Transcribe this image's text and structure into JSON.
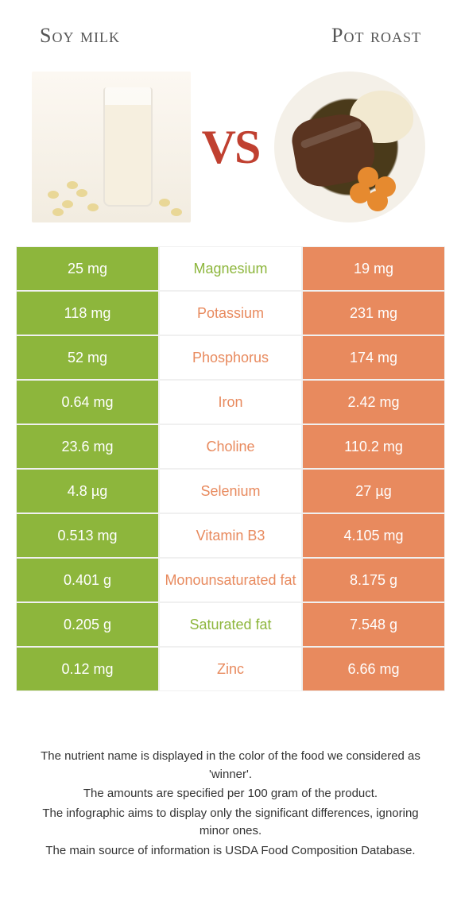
{
  "colors": {
    "green": "#8db63c",
    "orange": "#e88a5e",
    "row_border": "#f0f0f0",
    "title_text": "#555555",
    "vs_text": "#c04030"
  },
  "left_food": {
    "name": "Soy milk",
    "color_key": "green"
  },
  "right_food": {
    "name": "Pot roast",
    "color_key": "orange"
  },
  "vs_label": "VS",
  "nutrients": [
    {
      "name": "Magnesium",
      "left": "25 mg",
      "right": "19 mg",
      "winner": "left"
    },
    {
      "name": "Potassium",
      "left": "118 mg",
      "right": "231 mg",
      "winner": "right"
    },
    {
      "name": "Phosphorus",
      "left": "52 mg",
      "right": "174 mg",
      "winner": "right"
    },
    {
      "name": "Iron",
      "left": "0.64 mg",
      "right": "2.42 mg",
      "winner": "right"
    },
    {
      "name": "Choline",
      "left": "23.6 mg",
      "right": "110.2 mg",
      "winner": "right"
    },
    {
      "name": "Selenium",
      "left": "4.8 µg",
      "right": "27 µg",
      "winner": "right"
    },
    {
      "name": "Vitamin B3",
      "left": "0.513 mg",
      "right": "4.105 mg",
      "winner": "right"
    },
    {
      "name": "Monounsaturated fat",
      "left": "0.401 g",
      "right": "8.175 g",
      "winner": "right"
    },
    {
      "name": "Saturated fat",
      "left": "0.205 g",
      "right": "7.548 g",
      "winner": "left"
    },
    {
      "name": "Zinc",
      "left": "0.12 mg",
      "right": "6.66 mg",
      "winner": "right"
    }
  ],
  "footnotes": [
    "The nutrient name is displayed in the color of the food we considered as 'winner'.",
    "The amounts are specified per 100 gram of the product.",
    "The infographic aims to display only the significant differences, ignoring minor ones.",
    "The main source of information is USDA Food Composition Database."
  ]
}
